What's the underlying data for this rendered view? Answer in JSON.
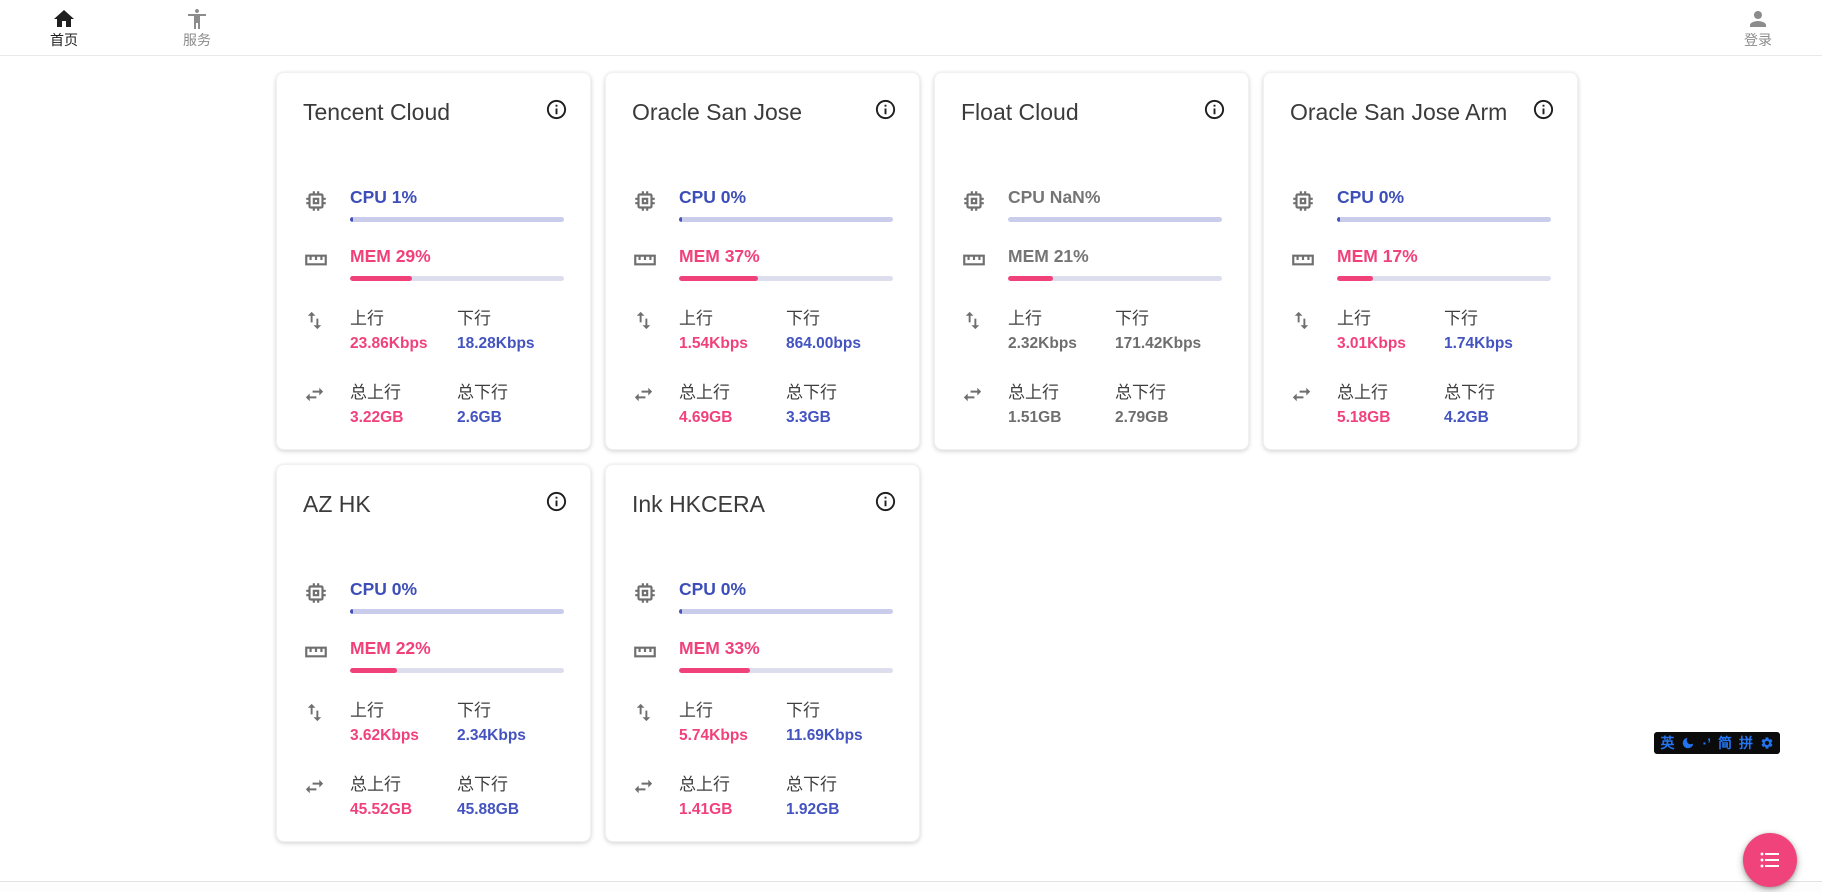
{
  "nav": {
    "items": [
      {
        "label": "首页",
        "icon": "home-icon",
        "active": true
      },
      {
        "label": "服务",
        "icon": "services-person-icon",
        "active": false
      }
    ],
    "login": {
      "label": "登录",
      "icon": "person-icon"
    }
  },
  "labels": {
    "up": "上行",
    "down": "下行",
    "total_up": "总上行",
    "total_down": "总下行"
  },
  "colors": {
    "accent_pink": "#f1417b",
    "accent_indigo": "#3d4eb8",
    "cpu_track": "#c9cdeb",
    "mem_track": "#dcdeee",
    "muted_text": "#757575",
    "fab_pink": "#f0437c",
    "ime_blue": "#2374f0"
  },
  "cards": [
    {
      "title": "Tencent Cloud",
      "cpu_text": "CPU 1%",
      "cpu_pct": 1,
      "mem_text": "MEM 29%",
      "mem_pct": 29,
      "up": "23.86Kbps",
      "down": "18.28Kbps",
      "total_up": "3.22GB",
      "total_down": "2.6GB",
      "state": "normal"
    },
    {
      "title": "Oracle San Jose",
      "cpu_text": "CPU 0%",
      "cpu_pct": 0,
      "mem_text": "MEM 37%",
      "mem_pct": 37,
      "up": "1.54Kbps",
      "down": "864.00bps",
      "total_up": "4.69GB",
      "total_down": "3.3GB",
      "state": "normal"
    },
    {
      "title": "Float Cloud",
      "cpu_text": "CPU NaN%",
      "cpu_pct": null,
      "mem_text": "MEM 21%",
      "mem_pct": 21,
      "up": "2.32Kbps",
      "down": "171.42Kbps",
      "total_up": "1.51GB",
      "total_down": "2.79GB",
      "state": "muted"
    },
    {
      "title": "Oracle San Jose Arm",
      "cpu_text": "CPU 0%",
      "cpu_pct": 0,
      "mem_text": "MEM 17%",
      "mem_pct": 17,
      "up": "3.01Kbps",
      "down": "1.74Kbps",
      "total_up": "5.18GB",
      "total_down": "4.2GB",
      "state": "normal"
    },
    {
      "title": "AZ HK",
      "cpu_text": "CPU 0%",
      "cpu_pct": 0,
      "mem_text": "MEM 22%",
      "mem_pct": 22,
      "up": "3.62Kbps",
      "down": "2.34Kbps",
      "total_up": "45.52GB",
      "total_down": "45.88GB",
      "state": "normal"
    },
    {
      "title": "Ink HKCERA",
      "cpu_text": "CPU 0%",
      "cpu_pct": 0,
      "mem_text": "MEM 33%",
      "mem_pct": 33,
      "up": "5.74Kbps",
      "down": "11.69Kbps",
      "total_up": "1.41GB",
      "total_down": "1.92GB",
      "state": "normal"
    }
  ],
  "ime": {
    "lang": "英",
    "punct": "·’",
    "simplified": "简",
    "pinyin": "拼"
  }
}
